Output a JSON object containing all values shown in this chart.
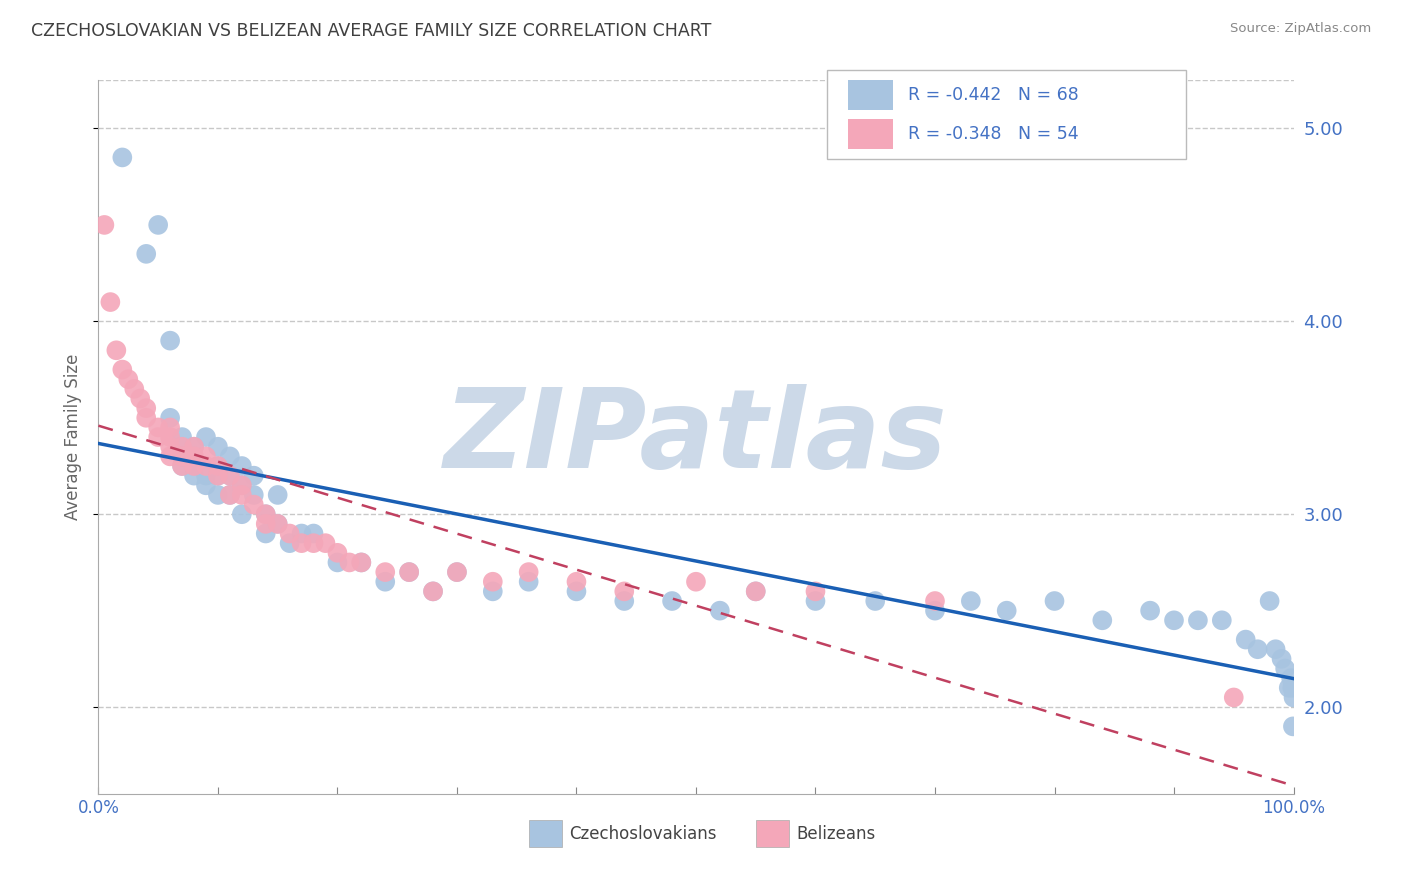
{
  "title": "CZECHOSLOVAKIAN VS BELIZEAN AVERAGE FAMILY SIZE CORRELATION CHART",
  "source": "Source: ZipAtlas.com",
  "ylabel": "Average Family Size",
  "xlim": [
    0.0,
    1.0
  ],
  "ylim": [
    1.55,
    5.25
  ],
  "yticks": [
    2.0,
    3.0,
    4.0,
    5.0
  ],
  "blue_R": -0.442,
  "blue_N": 68,
  "pink_R": -0.348,
  "pink_N": 54,
  "blue_color": "#a8c4e0",
  "pink_color": "#f4a7b9",
  "blue_line_color": "#1a5fb4",
  "pink_line_color": "#c04060",
  "grid_color": "#c8c8c8",
  "title_color": "#404040",
  "right_tick_color": "#4472c4",
  "watermark_color": "#ccd9e8",
  "watermark_text": "ZIPatlas",
  "legend_label_blue": "Czechoslovakians",
  "legend_label_pink": "Belizeans",
  "blue_x": [
    0.02,
    0.04,
    0.05,
    0.06,
    0.06,
    0.07,
    0.07,
    0.07,
    0.08,
    0.08,
    0.08,
    0.09,
    0.09,
    0.09,
    0.1,
    0.1,
    0.1,
    0.1,
    0.11,
    0.11,
    0.11,
    0.12,
    0.12,
    0.12,
    0.13,
    0.13,
    0.14,
    0.14,
    0.15,
    0.15,
    0.16,
    0.17,
    0.18,
    0.2,
    0.22,
    0.24,
    0.26,
    0.28,
    0.3,
    0.33,
    0.36,
    0.4,
    0.44,
    0.48,
    0.52,
    0.55,
    0.6,
    0.65,
    0.7,
    0.73,
    0.76,
    0.8,
    0.84,
    0.88,
    0.9,
    0.92,
    0.94,
    0.96,
    0.97,
    0.98,
    0.985,
    0.99,
    0.993,
    0.996,
    0.998,
    0.999,
    0.9995,
    1.0
  ],
  "blue_y": [
    4.85,
    4.35,
    4.5,
    3.9,
    3.5,
    3.4,
    3.3,
    3.25,
    3.35,
    3.25,
    3.2,
    3.4,
    3.2,
    3.15,
    3.35,
    3.25,
    3.2,
    3.1,
    3.3,
    3.2,
    3.1,
    3.25,
    3.15,
    3.0,
    3.2,
    3.1,
    3.0,
    2.9,
    3.1,
    2.95,
    2.85,
    2.9,
    2.9,
    2.75,
    2.75,
    2.65,
    2.7,
    2.6,
    2.7,
    2.6,
    2.65,
    2.6,
    2.55,
    2.55,
    2.5,
    2.6,
    2.55,
    2.55,
    2.5,
    2.55,
    2.5,
    2.55,
    2.45,
    2.5,
    2.45,
    2.45,
    2.45,
    2.35,
    2.3,
    2.55,
    2.3,
    2.25,
    2.2,
    2.1,
    2.15,
    2.1,
    1.9,
    2.05
  ],
  "pink_x": [
    0.005,
    0.01,
    0.015,
    0.02,
    0.025,
    0.03,
    0.035,
    0.04,
    0.04,
    0.05,
    0.05,
    0.06,
    0.06,
    0.06,
    0.06,
    0.07,
    0.07,
    0.07,
    0.07,
    0.08,
    0.08,
    0.08,
    0.09,
    0.09,
    0.1,
    0.1,
    0.11,
    0.11,
    0.12,
    0.12,
    0.13,
    0.14,
    0.14,
    0.15,
    0.16,
    0.17,
    0.18,
    0.19,
    0.2,
    0.21,
    0.22,
    0.24,
    0.26,
    0.28,
    0.3,
    0.33,
    0.36,
    0.4,
    0.44,
    0.5,
    0.55,
    0.6,
    0.7,
    0.95
  ],
  "pink_y": [
    4.5,
    4.1,
    3.85,
    3.75,
    3.7,
    3.65,
    3.6,
    3.55,
    3.5,
    3.45,
    3.4,
    3.45,
    3.4,
    3.35,
    3.3,
    3.35,
    3.3,
    3.25,
    3.3,
    3.35,
    3.3,
    3.25,
    3.3,
    3.25,
    3.25,
    3.2,
    3.2,
    3.1,
    3.15,
    3.1,
    3.05,
    3.0,
    2.95,
    2.95,
    2.9,
    2.85,
    2.85,
    2.85,
    2.8,
    2.75,
    2.75,
    2.7,
    2.7,
    2.6,
    2.7,
    2.65,
    2.7,
    2.65,
    2.6,
    2.65,
    2.6,
    2.6,
    2.55,
    2.05
  ]
}
